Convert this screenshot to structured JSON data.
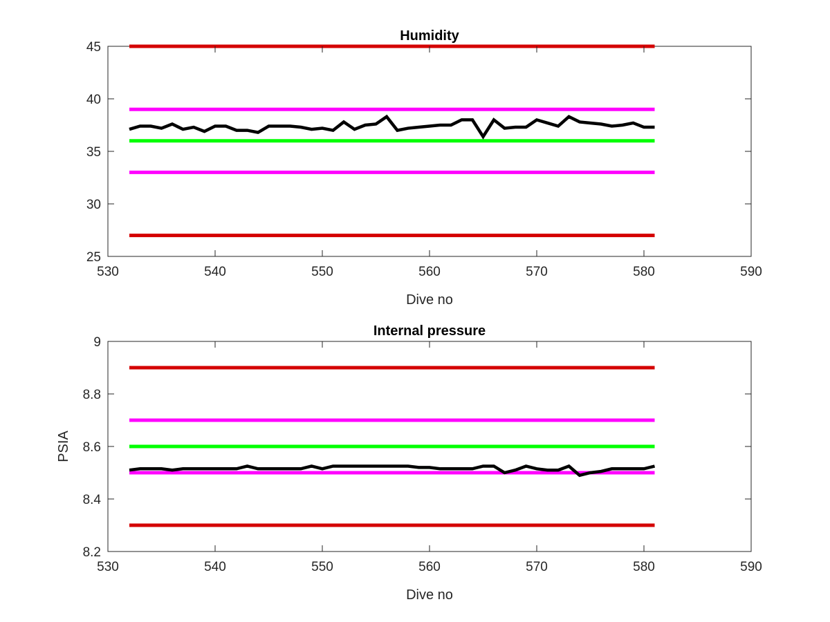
{
  "chart_data": [
    {
      "type": "line",
      "title": "Humidity",
      "xlabel": "Dive no",
      "ylabel": "",
      "xlim": [
        530,
        590
      ],
      "ylim": [
        25,
        45
      ],
      "xticks": [
        530,
        540,
        550,
        560,
        570,
        580,
        590
      ],
      "yticks": [
        25,
        30,
        35,
        40,
        45
      ],
      "grid": false,
      "series": [
        {
          "color": "#000000",
          "x": [
            532,
            533,
            534,
            535,
            536,
            537,
            538,
            539,
            540,
            541,
            542,
            543,
            544,
            545,
            546,
            547,
            548,
            549,
            550,
            551,
            552,
            553,
            554,
            555,
            556,
            557,
            558,
            559,
            560,
            561,
            562,
            563,
            564,
            565,
            566,
            567,
            568,
            569,
            570,
            571,
            572,
            573,
            574,
            575,
            576,
            577,
            578,
            579,
            580,
            581
          ],
          "values": [
            37.1,
            37.4,
            37.4,
            37.2,
            37.6,
            37.1,
            37.3,
            36.9,
            37.4,
            37.4,
            37.0,
            37.0,
            36.8,
            37.4,
            37.4,
            37.4,
            37.3,
            37.1,
            37.2,
            37.0,
            37.8,
            37.1,
            37.5,
            37.6,
            38.3,
            37.0,
            37.2,
            37.3,
            37.4,
            37.5,
            37.5,
            38.0,
            38.0,
            36.4,
            38.0,
            37.2,
            37.3,
            37.3,
            38.0,
            37.7,
            37.4,
            38.3,
            37.8,
            37.7,
            37.6,
            37.4,
            37.5,
            37.7,
            37.3,
            37.3
          ]
        }
      ],
      "reference_lines": [
        {
          "color": "#d40000",
          "y": 45,
          "x": [
            532,
            581
          ]
        },
        {
          "color": "#ff00ff",
          "y": 39,
          "x": [
            532,
            581
          ]
        },
        {
          "color": "#00ff00",
          "y": 36,
          "x": [
            532,
            581
          ]
        },
        {
          "color": "#ff00ff",
          "y": 33,
          "x": [
            532,
            581
          ]
        },
        {
          "color": "#d40000",
          "y": 27,
          "x": [
            532,
            581
          ]
        }
      ]
    },
    {
      "type": "line",
      "title": "Internal pressure",
      "xlabel": "Dive no",
      "ylabel": "PSIA",
      "xlim": [
        530,
        590
      ],
      "ylim": [
        8.2,
        9
      ],
      "xticks": [
        530,
        540,
        550,
        560,
        570,
        580,
        590
      ],
      "yticks": [
        8.2,
        8.4,
        8.6,
        8.8,
        9
      ],
      "grid": false,
      "series": [
        {
          "color": "#000000",
          "x": [
            532,
            533,
            534,
            535,
            536,
            537,
            538,
            539,
            540,
            541,
            542,
            543,
            544,
            545,
            546,
            547,
            548,
            549,
            550,
            551,
            552,
            553,
            554,
            555,
            556,
            557,
            558,
            559,
            560,
            561,
            562,
            563,
            564,
            565,
            566,
            567,
            568,
            569,
            570,
            571,
            572,
            573,
            574,
            575,
            576,
            577,
            578,
            579,
            580,
            581
          ],
          "values": [
            8.51,
            8.515,
            8.515,
            8.515,
            8.51,
            8.515,
            8.515,
            8.515,
            8.515,
            8.515,
            8.515,
            8.525,
            8.515,
            8.515,
            8.515,
            8.515,
            8.515,
            8.525,
            8.515,
            8.525,
            8.525,
            8.525,
            8.525,
            8.525,
            8.525,
            8.525,
            8.525,
            8.52,
            8.52,
            8.515,
            8.515,
            8.515,
            8.515,
            8.525,
            8.525,
            8.5,
            8.51,
            8.525,
            8.515,
            8.51,
            8.51,
            8.525,
            8.49,
            8.5,
            8.505,
            8.515,
            8.515,
            8.515,
            8.515,
            8.525
          ]
        }
      ],
      "reference_lines": [
        {
          "color": "#d40000",
          "y": 8.9,
          "x": [
            532,
            581
          ]
        },
        {
          "color": "#ff00ff",
          "y": 8.7,
          "x": [
            532,
            581
          ]
        },
        {
          "color": "#00ff00",
          "y": 8.6,
          "x": [
            532,
            581
          ]
        },
        {
          "color": "#ff00ff",
          "y": 8.5,
          "x": [
            532,
            581
          ]
        },
        {
          "color": "#d40000",
          "y": 8.3,
          "x": [
            532,
            581
          ]
        }
      ]
    }
  ]
}
